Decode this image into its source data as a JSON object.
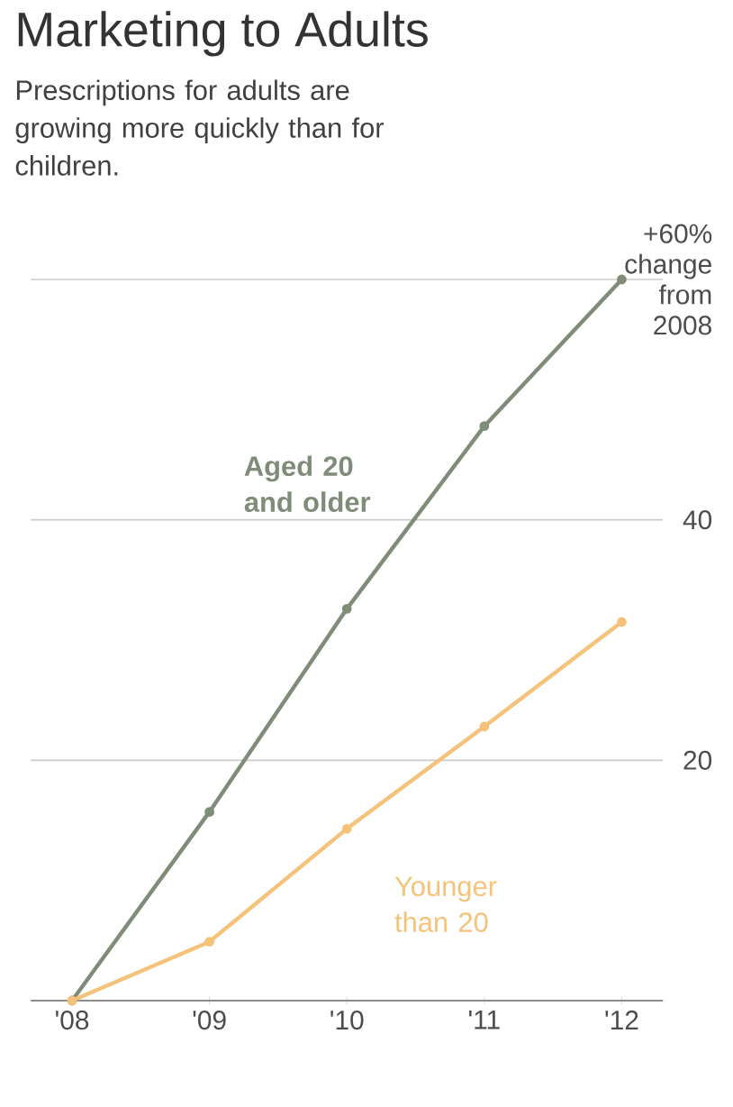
{
  "chart_data": {
    "type": "line",
    "title": "Marketing to Adults",
    "subtitle": "Prescriptions for adults are growing more quickly than for children.",
    "categories": [
      "'08",
      "'09",
      "'10",
      "'11",
      "'12"
    ],
    "series": [
      {
        "name": "**Aged 20 and older**",
        "color": "#7f8c78",
        "values": [
          0,
          15.7,
          32.6,
          47.8,
          60
        ]
      },
      {
        "name": "Younger than 20",
        "color": "#f5c27a",
        "values": [
          0,
          4.9,
          14.3,
          22.8,
          31.5
        ]
      }
    ],
    "ylim": [
      0,
      60
    ],
    "yticks": [
      {
        "value": 0,
        "label": null
      },
      20,
      40,
      {
        "value": 60,
        "label": "+60% change from 2008"
      }
    ],
    "grid": "y",
    "marker": "circle",
    "line_style": "solid"
  }
}
